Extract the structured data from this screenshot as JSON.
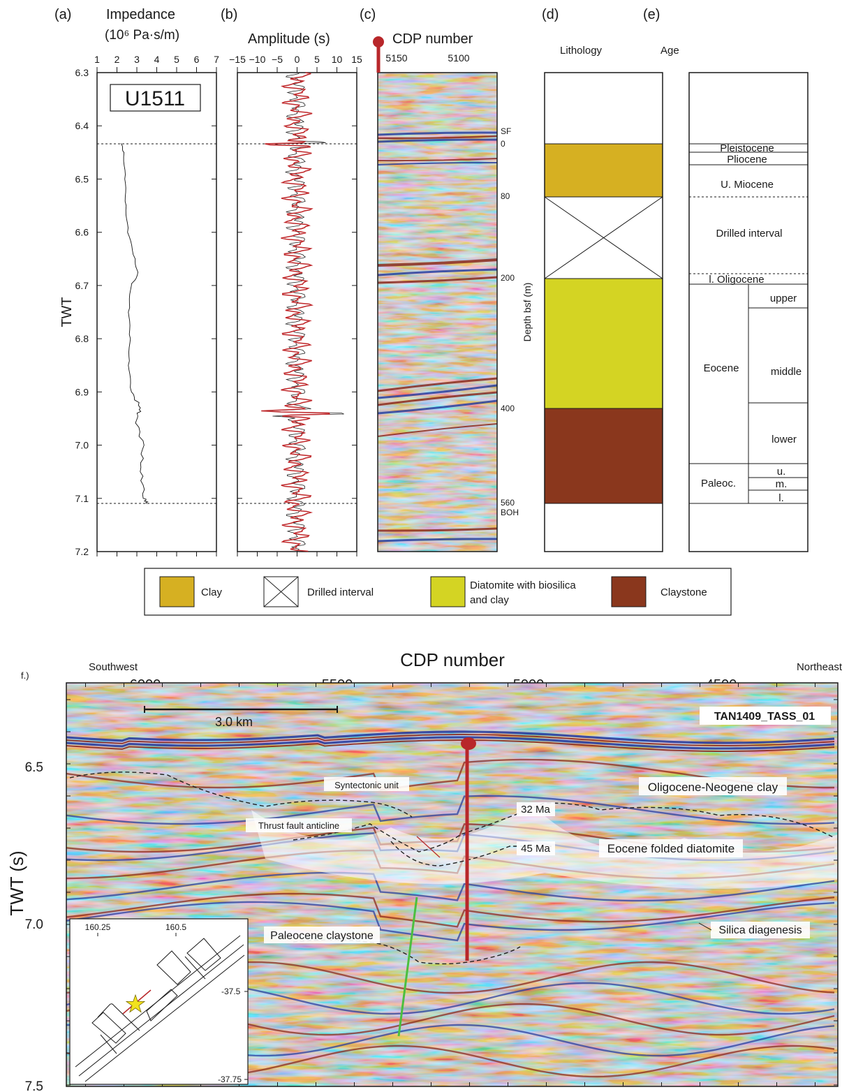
{
  "panel_a": {
    "letter": "(a)",
    "title_line1": "Impedance",
    "title_line2": "(10⁶ Pa·s/m)",
    "ticks": [
      "1",
      "2",
      "3",
      "4",
      "5",
      "6",
      "7"
    ],
    "site": "U1511",
    "ylabel": "TWT"
  },
  "panel_b": {
    "letter": "(b)",
    "title": "Amplitude (s)",
    "ticks": [
      "−15",
      "−10",
      "−5",
      "0",
      "5",
      "10",
      "15"
    ]
  },
  "panel_c": {
    "letter": "(c)",
    "title": "CDP number",
    "ticks": [
      "5150",
      "5100"
    ],
    "depth_axis_label": "Depth bsf (m)",
    "depth_labels": [
      "SF",
      "0",
      "80",
      "200",
      "400",
      "560",
      "BOH"
    ]
  },
  "panel_d": {
    "letter": "(d)",
    "title": "Lithology"
  },
  "panel_e": {
    "letter": "(e)",
    "title": "Age",
    "epochs": [
      "Pleistocene",
      "Pliocene",
      "U. Miocene",
      "Drilled interval",
      "l. Oligocene",
      "Eocene",
      "Paleoc."
    ],
    "subdivisions": [
      "upper",
      "middle",
      "lower",
      "u.",
      "m.",
      "l."
    ]
  },
  "twt_ticks_top": [
    "6.3",
    "6.4",
    "6.5",
    "6.6",
    "6.7",
    "6.8",
    "6.9",
    "7.0",
    "7.1",
    "7.2"
  ],
  "legend": [
    {
      "label": "Clay",
      "color": "#d6b022"
    },
    {
      "label": "Drilled interval",
      "color": "#ffffff"
    },
    {
      "label_line1": "Diatomite with biosilica",
      "label_line2": "and clay",
      "color": "#d4d423"
    },
    {
      "label": "Claystone",
      "color": "#8a371d"
    }
  ],
  "panel_f": {
    "letter": "f.)",
    "title": "CDP number",
    "left_dir": "Southwest",
    "right_dir": "Northeast",
    "x_ticks": [
      "6000",
      "5500",
      "5000",
      "4500"
    ],
    "y_ticks": [
      "6.5",
      "7.0",
      "7.5"
    ],
    "ylabel": "TWT (s)",
    "scale_bar": "3.0 km",
    "line_name": "TAN1409_TASS_01",
    "annotations": [
      "Syntectonic unit",
      "Oligocene-Neogene clay",
      "32 Ma",
      "Thrust fault anticline",
      "45 Ma",
      "Eocene folded diatomite",
      "Paleocene claystone",
      "Silica diagenesis"
    ],
    "inset": {
      "lon_ticks": [
        "160.25",
        "160.5"
      ],
      "lat_ticks": [
        "-37.5",
        "-37.75"
      ]
    }
  },
  "colors": {
    "well_red": "#b8272a",
    "trace_red": "#c0282b",
    "fault_green": "#4cbf3f",
    "seis_blue": "#2a3f9e",
    "seis_red": "#8b2a1e",
    "star": "#f2e21c"
  },
  "impedance_log": {
    "twt": [
      6.433,
      6.45,
      6.5,
      6.55,
      6.6,
      6.65,
      6.68,
      6.7,
      6.75,
      6.8,
      6.85,
      6.9,
      6.93,
      6.95,
      7.0,
      7.05,
      7.1,
      7.11
    ],
    "value": [
      2.2,
      2.35,
      2.4,
      2.45,
      2.55,
      2.9,
      3.05,
      2.7,
      2.6,
      2.65,
      2.6,
      2.7,
      3.2,
      2.95,
      3.3,
      3.2,
      3.4,
      3.5
    ]
  }
}
